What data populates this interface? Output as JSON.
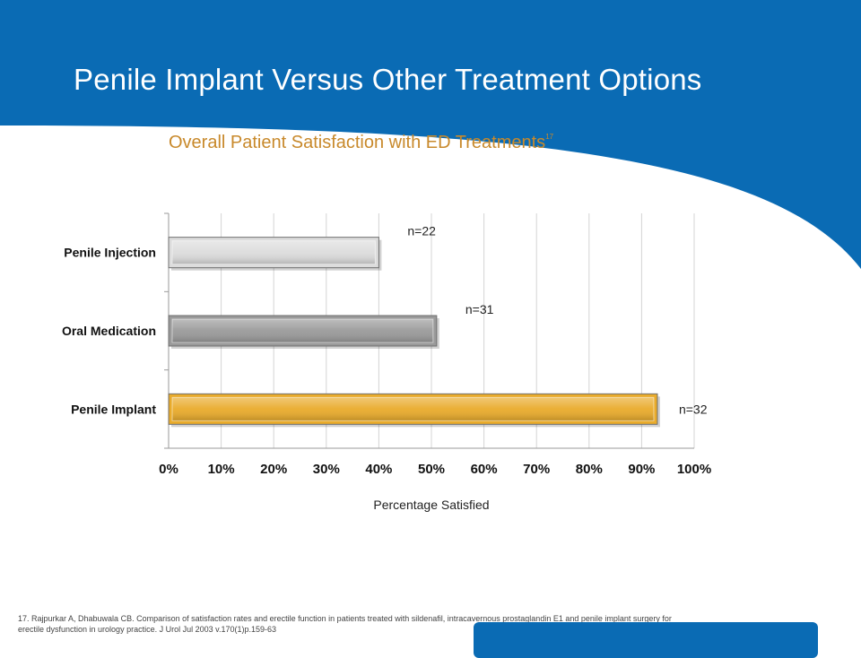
{
  "slide": {
    "title": "Penile Implant Versus Other Treatment Options",
    "footnote": "17. Rajpurkar A, Dhabuwala CB. Comparison of satisfaction rates and erectile function in patients treated with sildenafil, intracavernous prostaglandin E1 and penile implant surgery for erectile dysfunction in urology practice. J Urol Jul 2003 v.170(1)p.159-63"
  },
  "colors": {
    "header_blue": "#0a6bb4",
    "title_orange": "#c8892b"
  },
  "chart_data": {
    "type": "bar",
    "orientation": "horizontal",
    "title": "Overall Patient Satisfaction with ED Treatments",
    "title_superscript": "17",
    "xlabel": "Percentage Satisfied",
    "ylabel": "",
    "xlim": [
      0,
      100
    ],
    "x_ticks": [
      "0%",
      "10%",
      "20%",
      "30%",
      "40%",
      "50%",
      "60%",
      "70%",
      "80%",
      "90%",
      "100%"
    ],
    "grid": true,
    "categories": [
      "Penile Injection",
      "Oral Medication",
      "Penile Implant"
    ],
    "values": [
      40,
      51,
      93
    ],
    "data_labels": [
      "n=22",
      "n=31",
      "n=32"
    ],
    "bar_colors": [
      "#dcdcdc",
      "#9a9a9a",
      "#e9ab2b"
    ]
  }
}
